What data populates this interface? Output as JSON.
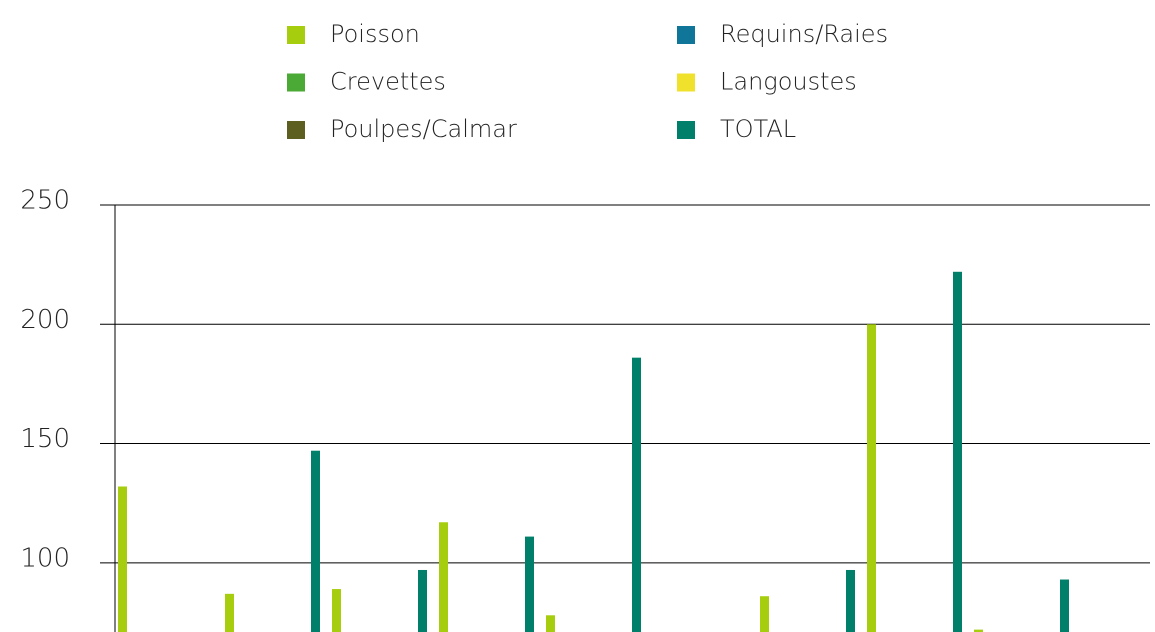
{
  "chart_data": {
    "type": "bar",
    "categories": [
      null,
      null,
      null,
      null,
      null,
      null,
      null,
      null,
      null
    ],
    "series": [
      {
        "name": "Poisson",
        "color": "#a6ce0e",
        "values": [
          132,
          87,
          89,
          117,
          78,
          null,
          86,
          200,
          72
        ]
      },
      {
        "name": "Requins/Raies",
        "color": "#0f7599",
        "values": [
          null,
          null,
          null,
          null,
          null,
          null,
          null,
          null,
          null
        ]
      },
      {
        "name": "Crevettes",
        "color": "#4aaa35",
        "values": [
          null,
          null,
          null,
          null,
          null,
          null,
          null,
          null,
          null
        ]
      },
      {
        "name": "Langoustes",
        "color": "#f0e22c",
        "values": [
          null,
          null,
          null,
          null,
          null,
          null,
          null,
          null,
          null
        ]
      },
      {
        "name": "Poulpes/Calmar",
        "color": "#5c5f1f",
        "values": [
          null,
          null,
          null,
          null,
          null,
          null,
          null,
          null,
          null
        ]
      },
      {
        "name": "TOTAL",
        "color": "#00806a",
        "values": [
          null,
          147,
          97,
          111,
          186,
          null,
          97,
          222,
          93
        ]
      }
    ],
    "ylim": [
      71,
      250
    ],
    "yticks": [
      100,
      150,
      200,
      250
    ],
    "grid": true
  }
}
